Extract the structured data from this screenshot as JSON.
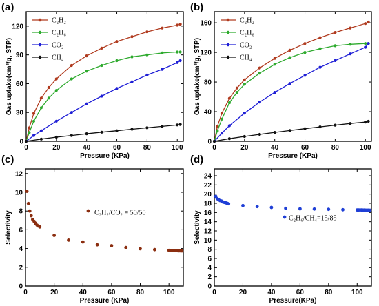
{
  "chart_data": [
    {
      "panel_label": "(a)",
      "type": "line",
      "xlabel": "Pressure (KPa)",
      "ylabel": "Gas uptake(cm³/g, STP)",
      "xlim": [
        0,
        104
      ],
      "ylim": [
        0,
        135
      ],
      "xticks": [
        "0",
        "20",
        "40",
        "60",
        "80",
        "100"
      ],
      "yticks": [
        "0",
        "30",
        "60",
        "90",
        "120"
      ],
      "legend_position": "top-left",
      "grid": false,
      "series": [
        {
          "name": "C₂H₂",
          "color": "#b03a1e",
          "x": [
            0,
            2,
            5,
            10,
            15,
            20,
            30,
            40,
            50,
            60,
            70,
            80,
            90,
            100,
            102
          ],
          "y": [
            0,
            14,
            29,
            45,
            56,
            65,
            79,
            89,
            97,
            104,
            109,
            114,
            118,
            121,
            122
          ]
        },
        {
          "name": "C₂H₆",
          "color": "#2eaa2e",
          "x": [
            0,
            2,
            5,
            10,
            15,
            20,
            30,
            40,
            50,
            60,
            70,
            80,
            90,
            100,
            102
          ],
          "y": [
            0,
            9,
            21,
            35,
            45,
            53,
            65,
            73,
            79,
            84,
            88,
            90,
            92,
            93,
            93
          ]
        },
        {
          "name": "CO₂",
          "color": "#1f1fd6",
          "x": [
            0,
            5,
            10,
            20,
            30,
            40,
            50,
            60,
            70,
            80,
            90,
            100,
            102
          ],
          "y": [
            0,
            6,
            11,
            21,
            30,
            39,
            47,
            55,
            62,
            69,
            75,
            82,
            84
          ]
        },
        {
          "name": "CH₄",
          "color": "#111111",
          "x": [
            0,
            10,
            20,
            30,
            40,
            50,
            60,
            70,
            80,
            90,
            100,
            102
          ],
          "y": [
            0,
            2.3,
            4.3,
            6,
            7.8,
            9.5,
            11,
            12.6,
            14.1,
            15.5,
            17,
            17.5
          ]
        }
      ]
    },
    {
      "panel_label": "(b)",
      "type": "line",
      "xlabel": "Pressure (KPa)",
      "ylabel": "Gas uptake(cm³/g, STP)",
      "xlim": [
        0,
        104
      ],
      "ylim": [
        0,
        175
      ],
      "xticks": [
        "0",
        "20",
        "40",
        "60",
        "80",
        "100"
      ],
      "yticks": [
        "0",
        "40",
        "80",
        "120",
        "160"
      ],
      "legend_position": "top-left",
      "grid": false,
      "series": [
        {
          "name": "C₂H₂",
          "color": "#b03a1e",
          "x": [
            0,
            2,
            5,
            10,
            15,
            20,
            30,
            40,
            50,
            60,
            70,
            80,
            90,
            100,
            102
          ],
          "y": [
            0,
            20,
            38,
            58,
            72,
            83,
            99,
            112,
            123,
            132,
            140,
            147,
            153,
            159,
            161
          ]
        },
        {
          "name": "C₂H₆",
          "color": "#2eaa2e",
          "x": [
            0,
            2,
            5,
            10,
            15,
            20,
            30,
            40,
            50,
            60,
            70,
            80,
            90,
            100,
            102
          ],
          "y": [
            0,
            14,
            30,
            52,
            66,
            77,
            92,
            104,
            113,
            120,
            125,
            129,
            131,
            132,
            132
          ]
        },
        {
          "name": "CO₂",
          "color": "#1f1fd6",
          "x": [
            0,
            5,
            10,
            20,
            30,
            40,
            50,
            60,
            70,
            80,
            90,
            100,
            102
          ],
          "y": [
            0,
            11,
            21,
            38,
            53,
            66,
            78,
            89,
            100,
            109,
            118,
            127,
            132
          ]
        },
        {
          "name": "CH₄",
          "color": "#111111",
          "x": [
            0,
            10,
            20,
            30,
            40,
            50,
            60,
            70,
            80,
            90,
            100,
            102
          ],
          "y": [
            0,
            3.5,
            6.5,
            9.3,
            12,
            14.5,
            17,
            19.5,
            21.8,
            24,
            26,
            27
          ]
        }
      ]
    },
    {
      "panel_label": "(c)",
      "type": "scatter",
      "xlabel": "Pressure (KPa)",
      "ylabel": "Selectivity",
      "xlim": [
        0,
        110
      ],
      "ylim": [
        0,
        12.5
      ],
      "xticks": [
        "0",
        "20",
        "40",
        "60",
        "80",
        "100"
      ],
      "yticks": [
        "0",
        "2",
        "4",
        "6",
        "8",
        "10",
        "12"
      ],
      "annotation": "C₂H₂/CO₂ = 50/50",
      "grid": false,
      "series": [
        {
          "color": "#8b2e10",
          "x": [
            1,
            2,
            3,
            4,
            5,
            6,
            7,
            8,
            9,
            10,
            20,
            30,
            40,
            50,
            60,
            70,
            80,
            90,
            100,
            101,
            102,
            103,
            104,
            105,
            106,
            107,
            108,
            109
          ],
          "y": [
            10.1,
            8.8,
            8.0,
            7.5,
            7.1,
            6.9,
            6.7,
            6.5,
            6.4,
            6.3,
            5.4,
            4.9,
            4.7,
            4.4,
            4.3,
            4.1,
            3.98,
            3.88,
            3.8,
            3.79,
            3.79,
            3.78,
            3.78,
            3.77,
            3.77,
            3.76,
            3.76,
            3.75
          ]
        }
      ]
    },
    {
      "panel_label": "(d)",
      "type": "scatter",
      "xlabel": "Pressure(KPa)",
      "ylabel": "Selectivity",
      "xlim": [
        0,
        110
      ],
      "ylim": [
        0,
        25.5
      ],
      "xticks": [
        "0",
        "20",
        "40",
        "60",
        "80",
        "100"
      ],
      "yticks": [
        "0",
        "2",
        "4",
        "6",
        "8",
        "10",
        "12",
        "14",
        "16",
        "18",
        "20",
        "22",
        "24"
      ],
      "annotation": "C₂H₆/CH₄=15/85",
      "grid": false,
      "series": [
        {
          "color": "#1f3fd6",
          "x": [
            1,
            2,
            3,
            4,
            5,
            6,
            7,
            8,
            9,
            10,
            20,
            30,
            40,
            50,
            60,
            70,
            80,
            90,
            100,
            101,
            102,
            103,
            104,
            105,
            106,
            107,
            108,
            109
          ],
          "y": [
            19.5,
            19.0,
            18.8,
            18.6,
            18.5,
            18.3,
            18.2,
            18.1,
            18.0,
            17.9,
            17.5,
            17.3,
            17.1,
            16.9,
            16.8,
            16.75,
            16.7,
            16.6,
            16.55,
            16.55,
            16.54,
            16.54,
            16.53,
            16.53,
            16.52,
            16.52,
            16.51,
            16.5
          ]
        }
      ]
    }
  ]
}
